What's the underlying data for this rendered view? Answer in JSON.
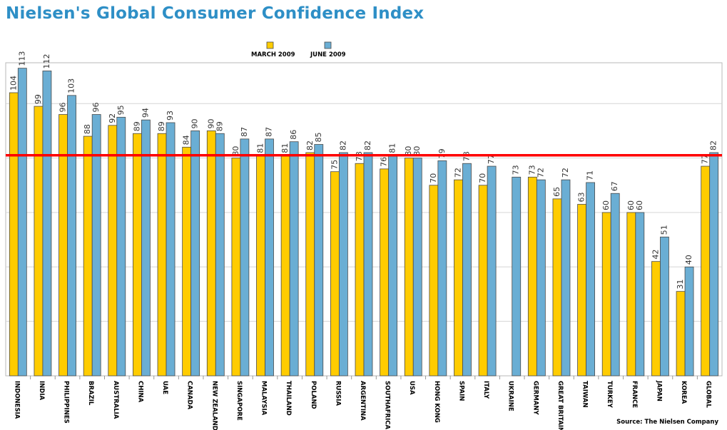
{
  "chart_data": {
    "type": "bar",
    "title": "Nielsen's Global Consumer Confidence Index",
    "source": "Source: The Nielsen Company",
    "categories": [
      "INDONESIA",
      "INDIA",
      "PHILIPPINES",
      "BRAZIL",
      "AUSTRALIA",
      "CHINA",
      "UAE",
      "CANADA",
      "NEW ZEALAND",
      "SINGAPORE",
      "MALAYSIA",
      "THAILAND",
      "POLAND",
      "RUSSIA",
      "ARGENTINA",
      "SOUTHAFRICA",
      "USA",
      "HONG KONG",
      "SPAIN",
      "ITALY",
      "UKRAINE",
      "GERMANY",
      "GREAT BRITAIN",
      "TAIWAN",
      "TURKEY",
      "FRANCE",
      "JAPAN",
      "KOREA",
      "GLOBAL"
    ],
    "series": [
      {
        "name": "MARCH 2009",
        "color": "#ffcc00",
        "values": [
          104,
          99,
          96,
          88,
          92,
          89,
          89,
          84,
          90,
          80,
          81,
          81,
          82,
          75,
          78,
          76,
          80,
          70,
          72,
          70,
          null,
          73,
          65,
          63,
          60,
          60,
          42,
          31,
          77
        ]
      },
      {
        "name": "JUNE 2009",
        "color": "#6aaed4",
        "values": [
          113,
          112,
          103,
          96,
          95,
          94,
          93,
          90,
          89,
          87,
          87,
          86,
          85,
          82,
          82,
          81,
          80,
          79,
          78,
          77,
          73,
          72,
          72,
          71,
          67,
          60,
          51,
          40,
          82
        ]
      }
    ],
    "ylim": [
      0,
      115
    ],
    "reference_line": 81,
    "reference_color": "#ff0000",
    "grid": "horizontal",
    "legend": "top-center"
  }
}
